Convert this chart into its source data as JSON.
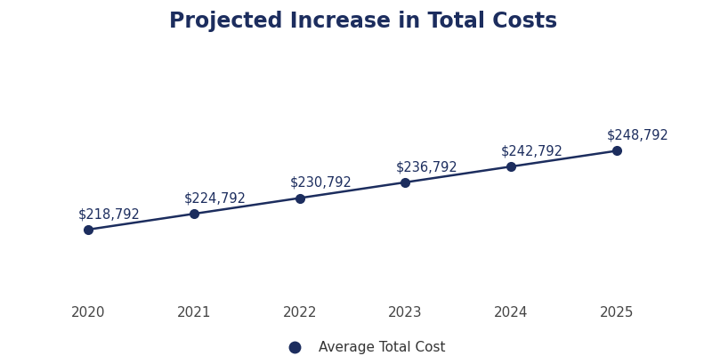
{
  "title": "Projected Increase in Total Costs",
  "years": [
    2020,
    2021,
    2022,
    2023,
    2024,
    2025
  ],
  "values": [
    218792,
    224792,
    230792,
    236792,
    242792,
    248792
  ],
  "labels": [
    "$218,792",
    "$224,792",
    "$230,792",
    "$236,792",
    "$242,792",
    "$248,792"
  ],
  "line_color": "#1c2d5e",
  "marker_color": "#1c2d5e",
  "marker_size": 7,
  "line_width": 1.8,
  "title_color": "#1c2d5e",
  "title_fontsize": 17,
  "label_fontsize": 10.5,
  "tick_fontsize": 11,
  "legend_label": "Average Total Cost",
  "background_color": "#ffffff",
  "ylim": [
    195000,
    290000
  ],
  "xlim": [
    2019.5,
    2025.7
  ]
}
